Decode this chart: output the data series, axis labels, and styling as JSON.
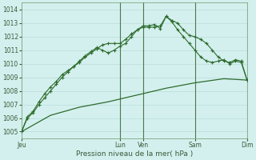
{
  "title": "Pression niveau de la mer( hPa )",
  "bg_color": "#d4f0ee",
  "grid_color": "#b8dcd8",
  "line_color": "#2d6b2d",
  "ylim": [
    1004.5,
    1014.5
  ],
  "yticks": [
    1005,
    1006,
    1007,
    1008,
    1009,
    1010,
    1011,
    1012,
    1013,
    1014
  ],
  "day_labels": [
    "Jeu",
    "Lun",
    "Ven",
    "Sam",
    "Dim"
  ],
  "day_x": [
    0,
    17,
    21,
    30,
    39
  ],
  "vlines": [
    17,
    21,
    30,
    39
  ],
  "line1_x": [
    0,
    1,
    2,
    3,
    4,
    5,
    6,
    7,
    8,
    9,
    10,
    11,
    12,
    13,
    14,
    15,
    16,
    17,
    18,
    19,
    20,
    21,
    22,
    23,
    24,
    25,
    26,
    27,
    28,
    29,
    30,
    31,
    32,
    33,
    34,
    35,
    36,
    37,
    38,
    39
  ],
  "line1_y": [
    1005.0,
    1006.0,
    1006.4,
    1007.0,
    1007.5,
    1008.0,
    1008.5,
    1009.0,
    1009.4,
    1009.8,
    1010.1,
    1010.5,
    1010.8,
    1011.1,
    1011.4,
    1011.5,
    1011.5,
    1011.5,
    1011.8,
    1012.2,
    1012.5,
    1012.7,
    1012.7,
    1012.7,
    1012.8,
    1013.5,
    1013.2,
    1013.0,
    1012.5,
    1012.1,
    1012.0,
    1011.8,
    1011.5,
    1011.0,
    1010.5,
    1010.2,
    1010.1,
    1010.3,
    1010.2,
    1008.8
  ],
  "line2_x": [
    0,
    1,
    2,
    3,
    4,
    5,
    6,
    7,
    8,
    9,
    10,
    11,
    12,
    13,
    14,
    15,
    16,
    17,
    18,
    19,
    20,
    21,
    22,
    23,
    24,
    25,
    26,
    27,
    28,
    29,
    30,
    31,
    32,
    33,
    34,
    35,
    36,
    37,
    38,
    39
  ],
  "line2_y": [
    1005.0,
    1006.1,
    1006.5,
    1007.2,
    1007.8,
    1008.3,
    1008.7,
    1009.2,
    1009.5,
    1009.8,
    1010.2,
    1010.6,
    1010.9,
    1011.2,
    1011.0,
    1010.8,
    1011.0,
    1011.3,
    1011.5,
    1012.0,
    1012.5,
    1012.8,
    1012.8,
    1012.9,
    1012.6,
    1013.5,
    1013.1,
    1012.5,
    1012.0,
    1011.5,
    1011.0,
    1010.5,
    1010.2,
    1010.1,
    1010.2,
    1010.3,
    1010.0,
    1010.2,
    1010.1,
    1008.8
  ],
  "line3_x": [
    0,
    5,
    10,
    15,
    17,
    21,
    25,
    30,
    35,
    39
  ],
  "line3_y": [
    1005.0,
    1006.2,
    1006.8,
    1007.2,
    1007.4,
    1007.8,
    1008.2,
    1008.6,
    1008.9,
    1008.8
  ]
}
